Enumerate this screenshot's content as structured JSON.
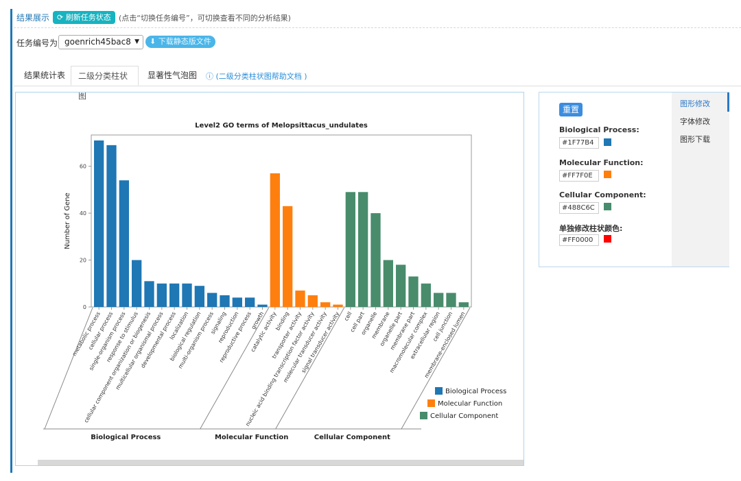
{
  "header": {
    "title": "结果展示",
    "refresh_label": "刷新任务状态",
    "hint": "(点击“切换任务编号”，可切换查看不同的分析结果)"
  },
  "task": {
    "label": "任务编号为",
    "selected": "goenrich45bac8",
    "download_label": "下载静态版文件"
  },
  "tabs": [
    {
      "label": "结果统计表"
    },
    {
      "label": "二级分类柱状图"
    },
    {
      "label": "显著性气泡图"
    }
  ],
  "help_link": "(二级分类柱状图帮助文档 )",
  "panel": {
    "reset_label": "重置",
    "side_items": [
      "图形修改",
      "字体修改",
      "图形下载"
    ],
    "colors": [
      {
        "label": "Biological Process:",
        "value": "#1F77B4"
      },
      {
        "label": "Molecular Function:",
        "value": "#FF7F0E"
      },
      {
        "label": "Cellular Component:",
        "value": "#488C6C"
      },
      {
        "label": "单独修改柱状颜色:",
        "value": "#FF0000"
      }
    ]
  },
  "chart_data": {
    "type": "bar",
    "title": "Level2 GO terms of Melopsittacus_undulates",
    "ylabel": "Number of Gene",
    "ylim": [
      0,
      71
    ],
    "yticks": [
      0,
      20,
      40,
      60
    ],
    "groups": [
      {
        "name": "Biological Process",
        "color": "#1F77B4",
        "categories": [
          "metabolic process",
          "cellular process",
          "single-organism process",
          "response to stimulus",
          "cellular component organization or biogenesis",
          "multicellular organismal process",
          "developmental process",
          "localization",
          "biological regulation",
          "multi-organism process",
          "signaling",
          "reproduction",
          "reproductive process",
          "growth"
        ],
        "values": [
          71,
          69,
          54,
          20,
          11,
          10,
          10,
          10,
          9,
          6,
          5,
          4,
          4,
          1
        ]
      },
      {
        "name": "Molecular Function",
        "color": "#FF7F0E",
        "categories": [
          "catalytic activity",
          "binding",
          "transporter activity",
          "nucleic acid binding transcription factor activity",
          "molecular transducer activity",
          "signal transducer activity"
        ],
        "values": [
          57,
          43,
          7,
          5,
          2,
          1
        ]
      },
      {
        "name": "Cellular Component",
        "color": "#488C6C",
        "categories": [
          "cell",
          "cell part",
          "organelle",
          "membrane",
          "organelle part",
          "membrane part",
          "macromolecular complex",
          "extracellular region",
          "cell junction",
          "membrane-enclosed lumen"
        ],
        "values": [
          49,
          49,
          40,
          20,
          18,
          13,
          10,
          6,
          6,
          2
        ]
      }
    ],
    "legend": [
      "Biological Process",
      "Molecular Function",
      "Cellular Component"
    ],
    "legend_position": "bottom-right"
  }
}
